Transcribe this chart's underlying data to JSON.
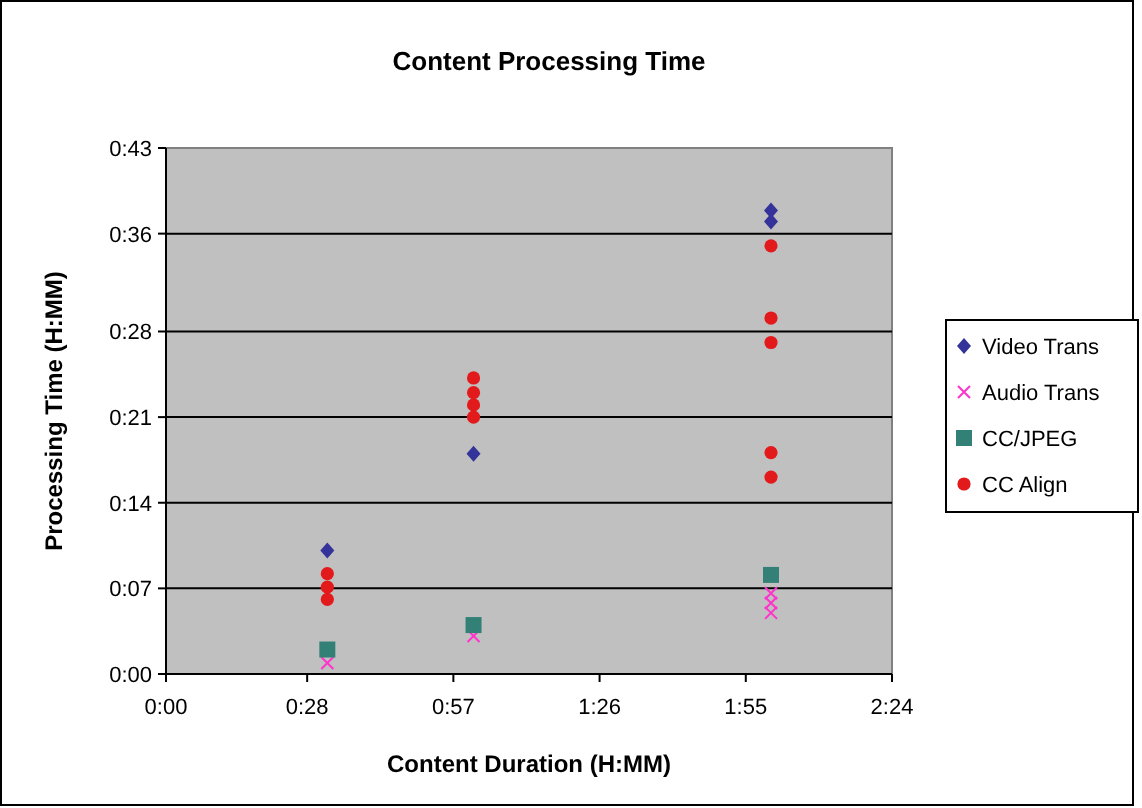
{
  "chart_data": {
    "type": "scatter",
    "title": "Content Processing Time",
    "xlabel": "Content Duration (H:MM)",
    "ylabel": "Processing Time (H:MM)",
    "xlim": [
      0,
      144
    ],
    "ylim": [
      0,
      43
    ],
    "xticks": [
      {
        "value": 0,
        "label": "0:00"
      },
      {
        "value": 28,
        "label": "0:28"
      },
      {
        "value": 57,
        "label": "0:57"
      },
      {
        "value": 86,
        "label": "1:26"
      },
      {
        "value": 115,
        "label": "1:55"
      },
      {
        "value": 144,
        "label": "2:24"
      }
    ],
    "yticks": [
      {
        "value": 0,
        "label": "0:00"
      },
      {
        "value": 7,
        "label": "0:07"
      },
      {
        "value": 14,
        "label": "0:14"
      },
      {
        "value": 21,
        "label": "0:21"
      },
      {
        "value": 28,
        "label": "0:28"
      },
      {
        "value": 36,
        "label": "0:36"
      },
      {
        "value": 43,
        "label": "0:43"
      }
    ],
    "grid": "y",
    "legend": "right",
    "series": [
      {
        "name": "Video Trans",
        "color": "#333399",
        "marker": "diamond",
        "x": [
          32,
          61,
          120,
          120
        ],
        "values": [
          10.1,
          18,
          37.9,
          37
        ]
      },
      {
        "name": "Audio Trans",
        "color": "#ff33cc",
        "marker": "cross",
        "x": [
          32,
          61,
          120,
          120,
          120
        ],
        "values": [
          0.9,
          3.1,
          6.6,
          5.8,
          5
        ]
      },
      {
        "name": "CC/JPEG",
        "color": "#338077",
        "marker": "square",
        "x": [
          32,
          61,
          120
        ],
        "values": [
          2,
          4,
          8.1
        ]
      },
      {
        "name": "CC Align",
        "color": "#e31a1c",
        "marker": "circle",
        "x": [
          32,
          32,
          32,
          61,
          61,
          61,
          61,
          120,
          120,
          120,
          120,
          120
        ],
        "values": [
          8.2,
          7.1,
          6.1,
          24.2,
          23,
          22,
          21,
          35,
          29.1,
          27.1,
          18.1,
          16.1
        ]
      }
    ]
  }
}
